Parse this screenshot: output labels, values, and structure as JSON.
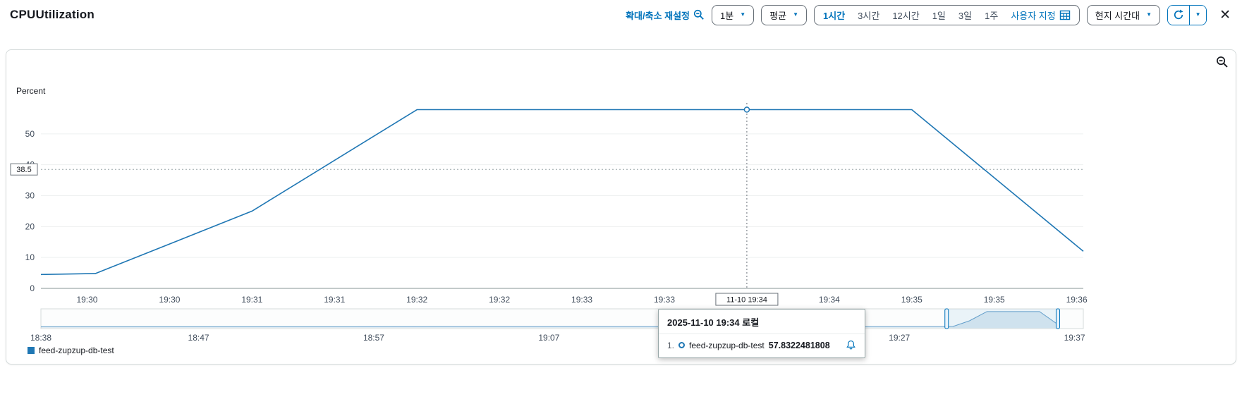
{
  "header": {
    "title": "CPUUtilization",
    "zoom_reset": "확대/축소 재설정",
    "period_label": "1분",
    "statistic_label": "평균",
    "timezone_label": "현지 시간대",
    "close": "✕",
    "ranges": {
      "options": [
        "1시간",
        "3시간",
        "12시간",
        "1일",
        "3일",
        "1주"
      ],
      "selected": "1시간",
      "custom": "사용자 지정"
    }
  },
  "colors": {
    "accent": "#0073bb",
    "series": "#1f77b4",
    "grid": "#eef0f0",
    "axis": "#879596",
    "text": "#16191f",
    "muted": "#414d5c",
    "panel_border": "#d5dbdb"
  },
  "chart_data": {
    "type": "line",
    "title": "CPUUtilization",
    "ylabel": "Percent",
    "ylim": [
      0,
      60
    ],
    "y_ticks": [
      0,
      10,
      20,
      30,
      40,
      50
    ],
    "x_domain_minutes": [
      29.72,
      36.04
    ],
    "x_ticks": [
      {
        "t": 30.0,
        "label": "19:30"
      },
      {
        "t": 30.5,
        "label": "19:30"
      },
      {
        "t": 31.0,
        "label": "19:31"
      },
      {
        "t": 31.5,
        "label": "19:31"
      },
      {
        "t": 32.0,
        "label": "19:32"
      },
      {
        "t": 32.5,
        "label": "19:32"
      },
      {
        "t": 33.0,
        "label": "19:33"
      },
      {
        "t": 33.5,
        "label": "19:33"
      },
      {
        "t": 34.5,
        "label": "19:34"
      },
      {
        "t": 35.0,
        "label": "19:35"
      },
      {
        "t": 35.5,
        "label": "19:35"
      },
      {
        "t": 36.0,
        "label": "19:36"
      }
    ],
    "hover": {
      "t": 34.0,
      "label": "11-10 19:34",
      "value": 57.8322481808,
      "y_line": 38.5,
      "y_line_label": "38.5"
    },
    "series": [
      {
        "name": "feed-zupzup-db-test",
        "color": "#1f77b4",
        "points": [
          [
            29.72,
            4.5
          ],
          [
            30.05,
            4.8
          ],
          [
            31.0,
            25.0
          ],
          [
            32.0,
            57.83
          ],
          [
            35.0,
            57.83
          ],
          [
            36.04,
            12.0
          ]
        ]
      }
    ],
    "navigator": {
      "domain": [
        0,
        59.5
      ],
      "ticks": [
        {
          "t": 0,
          "label": "18:38"
        },
        {
          "t": 9,
          "label": "18:47"
        },
        {
          "t": 19,
          "label": "18:57"
        },
        {
          "t": 29,
          "label": "19:07"
        },
        {
          "t": 49,
          "label": "19:27"
        },
        {
          "t": 59,
          "label": "19:37"
        }
      ],
      "window": [
        51.7,
        58.05
      ],
      "points": [
        [
          0,
          4.0
        ],
        [
          51.7,
          4.5
        ],
        [
          52.05,
          4.8
        ],
        [
          53.0,
          25.0
        ],
        [
          54.0,
          57.8
        ],
        [
          57.0,
          57.8
        ],
        [
          58.05,
          12.0
        ]
      ]
    }
  },
  "tooltip": {
    "title": "2025-11-10 19:34 로컬",
    "rows": [
      {
        "index": "1.",
        "name": "feed-zupzup-db-test",
        "value": "57.8322481808"
      }
    ]
  },
  "legend": {
    "items": [
      {
        "label": "feed-zupzup-db-test",
        "color": "#1f77b4"
      }
    ]
  }
}
